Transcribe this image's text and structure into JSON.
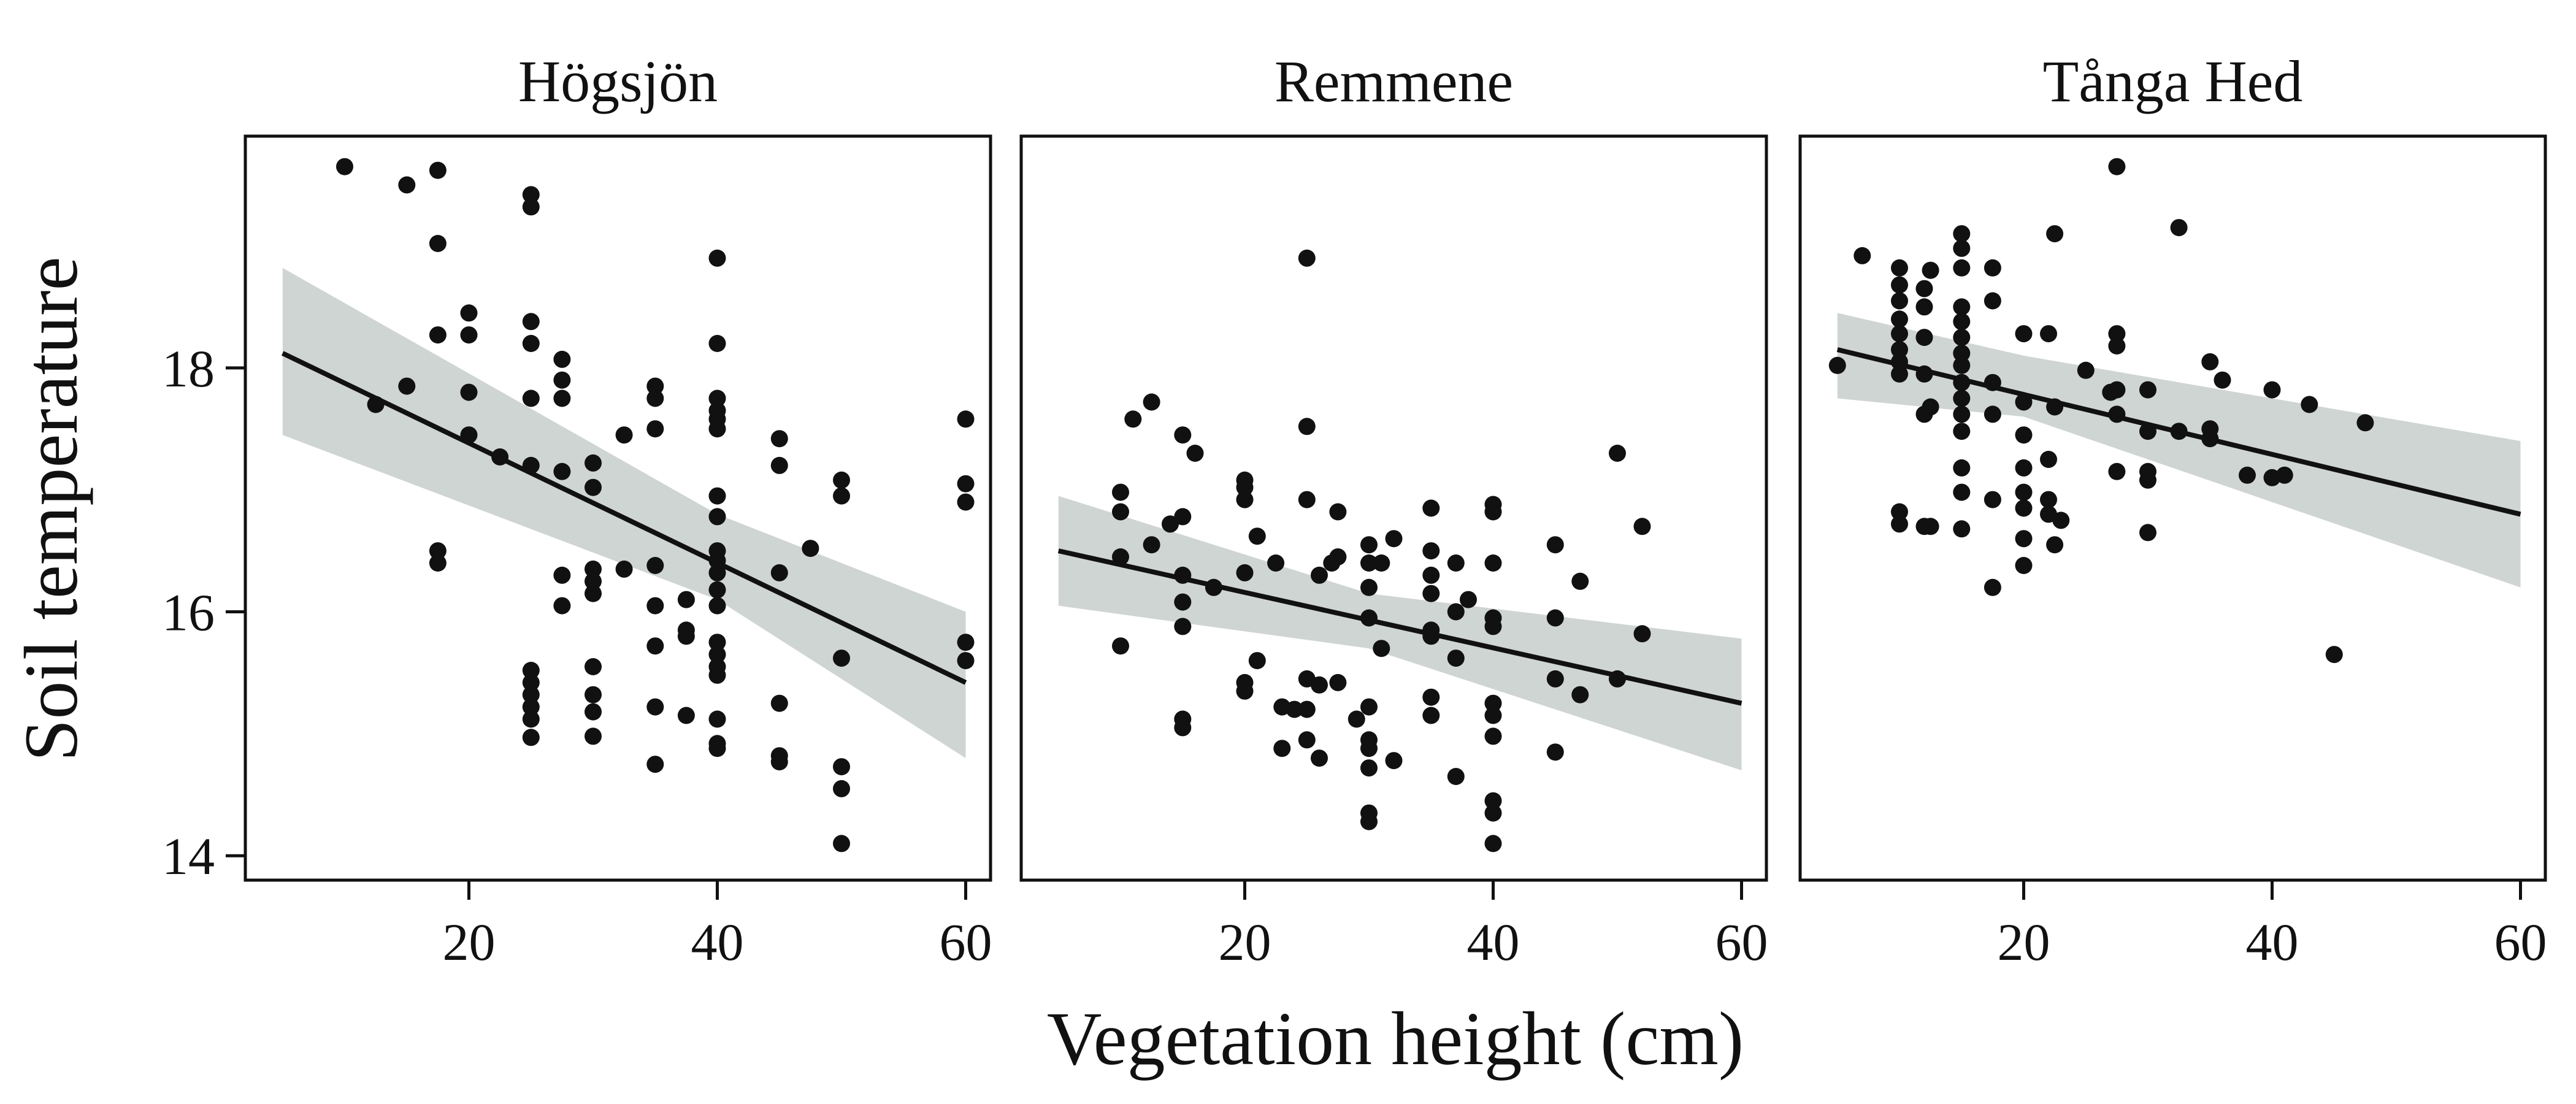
{
  "chart_data": {
    "type": "scatter",
    "xlabel": "Vegetation height (cm)",
    "ylabel": "Soil temperature",
    "xlim": [
      2,
      62
    ],
    "ylim": [
      13.8,
      19.9
    ],
    "xticks": [
      20,
      40,
      60
    ],
    "yticks": [
      14,
      16,
      18
    ],
    "grid": false,
    "colors": {
      "point": "#111111",
      "line": "#111111",
      "band": "#cfd5d3",
      "frame": "#111111"
    },
    "panels": [
      {
        "title": "Högsjön",
        "points": [
          [
            10,
            19.65
          ],
          [
            15,
            19.5
          ],
          [
            17.5,
            19.62
          ],
          [
            17.5,
            19.02
          ],
          [
            17.5,
            18.27
          ],
          [
            12.5,
            17.7
          ],
          [
            15,
            17.85
          ],
          [
            20,
            18.45
          ],
          [
            20,
            18.27
          ],
          [
            20,
            17.8
          ],
          [
            20,
            17.45
          ],
          [
            22.5,
            17.27
          ],
          [
            25,
            19.42
          ],
          [
            25,
            19.32
          ],
          [
            25,
            18.38
          ],
          [
            25,
            18.2
          ],
          [
            25,
            17.75
          ],
          [
            25,
            17.2
          ],
          [
            17.5,
            16.5
          ],
          [
            17.5,
            16.4
          ],
          [
            27.5,
            18.07
          ],
          [
            27.5,
            17.9
          ],
          [
            27.5,
            17.75
          ],
          [
            27.5,
            17.15
          ],
          [
            27.5,
            16.3
          ],
          [
            27.5,
            16.05
          ],
          [
            30,
            17.22
          ],
          [
            30,
            17.02
          ],
          [
            30,
            16.35
          ],
          [
            30,
            16.25
          ],
          [
            30,
            16.15
          ],
          [
            30,
            15.55
          ],
          [
            30,
            15.32
          ],
          [
            30,
            15.18
          ],
          [
            30,
            14.98
          ],
          [
            32.5,
            17.45
          ],
          [
            32.5,
            16.35
          ],
          [
            35,
            17.85
          ],
          [
            35,
            17.75
          ],
          [
            35,
            17.5
          ],
          [
            35,
            16.38
          ],
          [
            35,
            16.05
          ],
          [
            35,
            15.72
          ],
          [
            35,
            15.22
          ],
          [
            35,
            14.75
          ],
          [
            37.5,
            16.1
          ],
          [
            37.5,
            15.85
          ],
          [
            37.5,
            15.8
          ],
          [
            37.5,
            15.15
          ],
          [
            25,
            15.52
          ],
          [
            25,
            15.42
          ],
          [
            25,
            15.32
          ],
          [
            25,
            15.22
          ],
          [
            25,
            15.12
          ],
          [
            25,
            14.97
          ],
          [
            40,
            18.9
          ],
          [
            40,
            18.2
          ],
          [
            40,
            17.75
          ],
          [
            40,
            17.65
          ],
          [
            40,
            17.58
          ],
          [
            40,
            17.5
          ],
          [
            40,
            16.95
          ],
          [
            40,
            16.78
          ],
          [
            40,
            16.5
          ],
          [
            40,
            16.42
          ],
          [
            40,
            16.32
          ],
          [
            40,
            16.18
          ],
          [
            40,
            16.05
          ],
          [
            40,
            15.75
          ],
          [
            40,
            15.65
          ],
          [
            40,
            15.55
          ],
          [
            40,
            15.48
          ],
          [
            40,
            15.12
          ],
          [
            40,
            14.92
          ],
          [
            40,
            14.88
          ],
          [
            45,
            17.42
          ],
          [
            45,
            17.2
          ],
          [
            45,
            16.32
          ],
          [
            45,
            15.25
          ],
          [
            45,
            14.82
          ],
          [
            45,
            14.77
          ],
          [
            47.5,
            16.52
          ],
          [
            50,
            17.08
          ],
          [
            50,
            16.95
          ],
          [
            50,
            15.62
          ],
          [
            50,
            14.73
          ],
          [
            50,
            14.55
          ],
          [
            50,
            14.1
          ],
          [
            60,
            17.58
          ],
          [
            60,
            17.05
          ],
          [
            60,
            16.9
          ],
          [
            60,
            15.75
          ],
          [
            60,
            15.6
          ]
        ],
        "fit": {
          "x": [
            5,
            60
          ],
          "y": [
            18.12,
            15.42
          ]
        },
        "ci": {
          "x": [
            5,
            40,
            60
          ],
          "upper": [
            18.82,
            16.8,
            16.0
          ],
          "lower": [
            17.45,
            16.1,
            14.8
          ]
        }
      },
      {
        "title": "Remmene",
        "points": [
          [
            10,
            16.98
          ],
          [
            10,
            16.82
          ],
          [
            10,
            16.45
          ],
          [
            10,
            15.72
          ],
          [
            11,
            17.58
          ],
          [
            12.5,
            17.72
          ],
          [
            12.5,
            16.55
          ],
          [
            14,
            16.72
          ],
          [
            15,
            17.45
          ],
          [
            15,
            16.3
          ],
          [
            15,
            16.08
          ],
          [
            15,
            15.88
          ],
          [
            15,
            15.12
          ],
          [
            15,
            15.05
          ],
          [
            15,
            16.78
          ],
          [
            16,
            17.3
          ],
          [
            17.5,
            16.2
          ],
          [
            20,
            17.08
          ],
          [
            20,
            17.02
          ],
          [
            20,
            16.92
          ],
          [
            20,
            16.32
          ],
          [
            20,
            15.42
          ],
          [
            20,
            15.35
          ],
          [
            21,
            15.6
          ],
          [
            21,
            16.62
          ],
          [
            22.5,
            16.4
          ],
          [
            23,
            15.22
          ],
          [
            23,
            14.88
          ],
          [
            24,
            15.2
          ],
          [
            25,
            18.9
          ],
          [
            25,
            17.52
          ],
          [
            25,
            16.92
          ],
          [
            25,
            15.45
          ],
          [
            25,
            15.2
          ],
          [
            25,
            14.95
          ],
          [
            26,
            15.4
          ],
          [
            26,
            14.8
          ],
          [
            26,
            16.3
          ],
          [
            27,
            16.4
          ],
          [
            27.5,
            16.82
          ],
          [
            27.5,
            16.45
          ],
          [
            27.5,
            15.42
          ],
          [
            29,
            15.12
          ],
          [
            30,
            16.55
          ],
          [
            30,
            16.4
          ],
          [
            30,
            16.2
          ],
          [
            30,
            15.95
          ],
          [
            30,
            15.22
          ],
          [
            30,
            14.95
          ],
          [
            30,
            14.88
          ],
          [
            30,
            14.72
          ],
          [
            30,
            14.35
          ],
          [
            30,
            14.28
          ],
          [
            31,
            16.4
          ],
          [
            31,
            15.7
          ],
          [
            32,
            16.6
          ],
          [
            32,
            14.78
          ],
          [
            35,
            16.85
          ],
          [
            35,
            16.5
          ],
          [
            35,
            16.3
          ],
          [
            35,
            16.15
          ],
          [
            35,
            15.85
          ],
          [
            35,
            15.8
          ],
          [
            35,
            15.3
          ],
          [
            35,
            15.15
          ],
          [
            37,
            16.4
          ],
          [
            37,
            16.0
          ],
          [
            37,
            15.62
          ],
          [
            37,
            14.65
          ],
          [
            38,
            16.1
          ],
          [
            40,
            16.88
          ],
          [
            40,
            16.82
          ],
          [
            40,
            16.4
          ],
          [
            40,
            15.95
          ],
          [
            40,
            15.88
          ],
          [
            40,
            15.25
          ],
          [
            40,
            15.15
          ],
          [
            40,
            14.98
          ],
          [
            40,
            14.45
          ],
          [
            40,
            14.35
          ],
          [
            40,
            14.1
          ],
          [
            45,
            16.55
          ],
          [
            45,
            15.95
          ],
          [
            45,
            15.45
          ],
          [
            45,
            14.85
          ],
          [
            47,
            16.25
          ],
          [
            47,
            15.32
          ],
          [
            50,
            17.3
          ],
          [
            50,
            15.45
          ],
          [
            52,
            16.7
          ],
          [
            52,
            15.82
          ]
        ],
        "fit": {
          "x": [
            5,
            60
          ],
          "y": [
            16.5,
            15.25
          ]
        },
        "ci": {
          "x": [
            5,
            30,
            60
          ],
          "upper": [
            16.95,
            16.15,
            15.78
          ],
          "lower": [
            16.05,
            15.7,
            14.7
          ]
        }
      },
      {
        "title": "Tånga Hed",
        "points": [
          [
            5,
            18.02
          ],
          [
            7,
            18.92
          ],
          [
            10,
            18.82
          ],
          [
            10,
            18.68
          ],
          [
            10,
            18.55
          ],
          [
            10,
            18.4
          ],
          [
            10,
            18.28
          ],
          [
            10,
            18.15
          ],
          [
            10,
            18.05
          ],
          [
            10,
            17.95
          ],
          [
            10,
            16.82
          ],
          [
            10,
            16.72
          ],
          [
            12,
            18.65
          ],
          [
            12,
            18.5
          ],
          [
            12,
            18.25
          ],
          [
            12,
            17.95
          ],
          [
            12,
            17.62
          ],
          [
            12,
            16.7
          ],
          [
            12.5,
            18.8
          ],
          [
            12.5,
            17.68
          ],
          [
            12.5,
            16.7
          ],
          [
            15,
            19.1
          ],
          [
            15,
            18.98
          ],
          [
            15,
            18.82
          ],
          [
            15,
            18.5
          ],
          [
            15,
            18.38
          ],
          [
            15,
            18.25
          ],
          [
            15,
            18.12
          ],
          [
            15,
            18.02
          ],
          [
            15,
            17.88
          ],
          [
            15,
            17.75
          ],
          [
            15,
            17.62
          ],
          [
            15,
            17.48
          ],
          [
            15,
            17.18
          ],
          [
            15,
            16.68
          ],
          [
            15,
            16.98
          ],
          [
            17.5,
            18.82
          ],
          [
            17.5,
            18.55
          ],
          [
            17.5,
            17.88
          ],
          [
            17.5,
            17.62
          ],
          [
            17.5,
            16.92
          ],
          [
            17.5,
            16.2
          ],
          [
            20,
            18.28
          ],
          [
            20,
            17.72
          ],
          [
            20,
            17.45
          ],
          [
            20,
            17.18
          ],
          [
            20,
            16.98
          ],
          [
            20,
            16.85
          ],
          [
            20,
            16.6
          ],
          [
            20,
            16.38
          ],
          [
            22,
            18.28
          ],
          [
            22,
            17.25
          ],
          [
            22,
            16.92
          ],
          [
            22,
            16.8
          ],
          [
            22.5,
            17.68
          ],
          [
            22.5,
            16.55
          ],
          [
            23,
            16.75
          ],
          [
            22.5,
            19.1
          ],
          [
            25,
            17.98
          ],
          [
            27,
            17.8
          ],
          [
            27.5,
            19.65
          ],
          [
            27.5,
            18.28
          ],
          [
            27.5,
            18.18
          ],
          [
            27.5,
            17.82
          ],
          [
            27.5,
            17.62
          ],
          [
            27.5,
            17.15
          ],
          [
            30,
            17.82
          ],
          [
            30,
            17.48
          ],
          [
            30,
            17.15
          ],
          [
            30,
            17.08
          ],
          [
            30,
            16.65
          ],
          [
            32.5,
            19.15
          ],
          [
            32.5,
            17.48
          ],
          [
            35,
            18.05
          ],
          [
            35,
            17.5
          ],
          [
            35,
            17.42
          ],
          [
            36,
            17.9
          ],
          [
            38,
            17.12
          ],
          [
            40,
            17.82
          ],
          [
            40,
            17.1
          ],
          [
            41,
            17.12
          ],
          [
            43,
            17.7
          ],
          [
            45,
            15.65
          ],
          [
            47.5,
            17.55
          ]
        ],
        "fit": {
          "x": [
            5,
            60
          ],
          "y": [
            18.15,
            16.8
          ]
        },
        "ci": {
          "x": [
            5,
            20,
            60
          ],
          "upper": [
            18.45,
            18.1,
            17.4
          ],
          "lower": [
            17.75,
            17.6,
            16.2
          ]
        }
      }
    ]
  }
}
